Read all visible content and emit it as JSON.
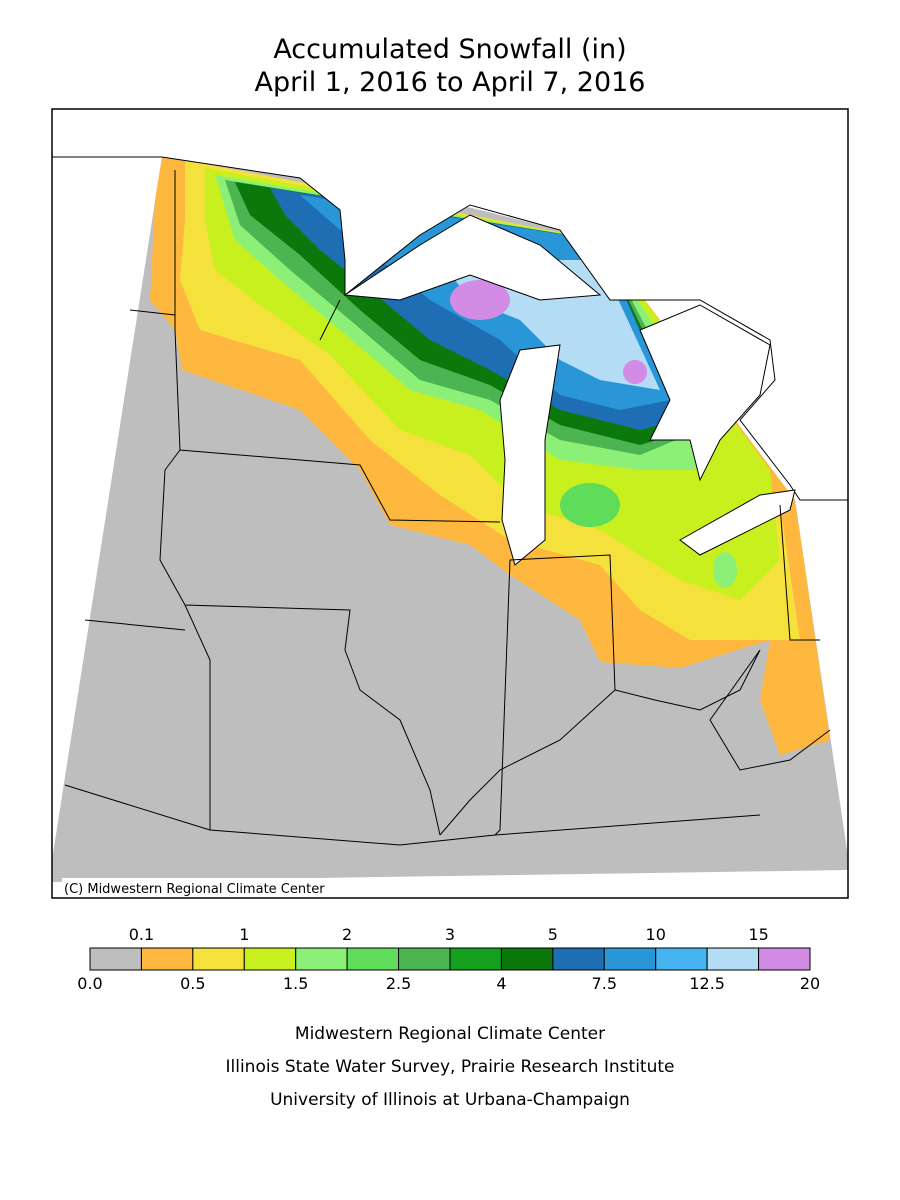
{
  "header": {
    "title": "Accumulated Snowfall (in)",
    "subtitle": "April 1, 2016 to April 7, 2016"
  },
  "map": {
    "copyright": "(C) Midwestern Regional Climate Center"
  },
  "legend": {
    "levels": [
      {
        "value": 0,
        "label": "0.0"
      },
      0.1,
      0.5,
      1,
      1.5,
      2,
      2.5,
      3,
      4,
      5,
      7.5,
      10,
      12.5,
      15,
      20
    ],
    "colors": [
      "#bebebe",
      "#ffb83f",
      "#f5e13c",
      "#c8f01e",
      "#8cf078",
      "#5fdc5a",
      "#4cb450",
      "#14a01e",
      "#0a780a",
      "#1e6eb4",
      "#2896d7",
      "#46b4f0",
      "#b4dcf5",
      "#d28ce6"
    ]
  },
  "footer": {
    "lines": [
      "Midwestern Regional Climate Center",
      "Illinois State Water Survey, Prairie Research Institute",
      "University of Illinois at Urbana-Champaign"
    ]
  }
}
